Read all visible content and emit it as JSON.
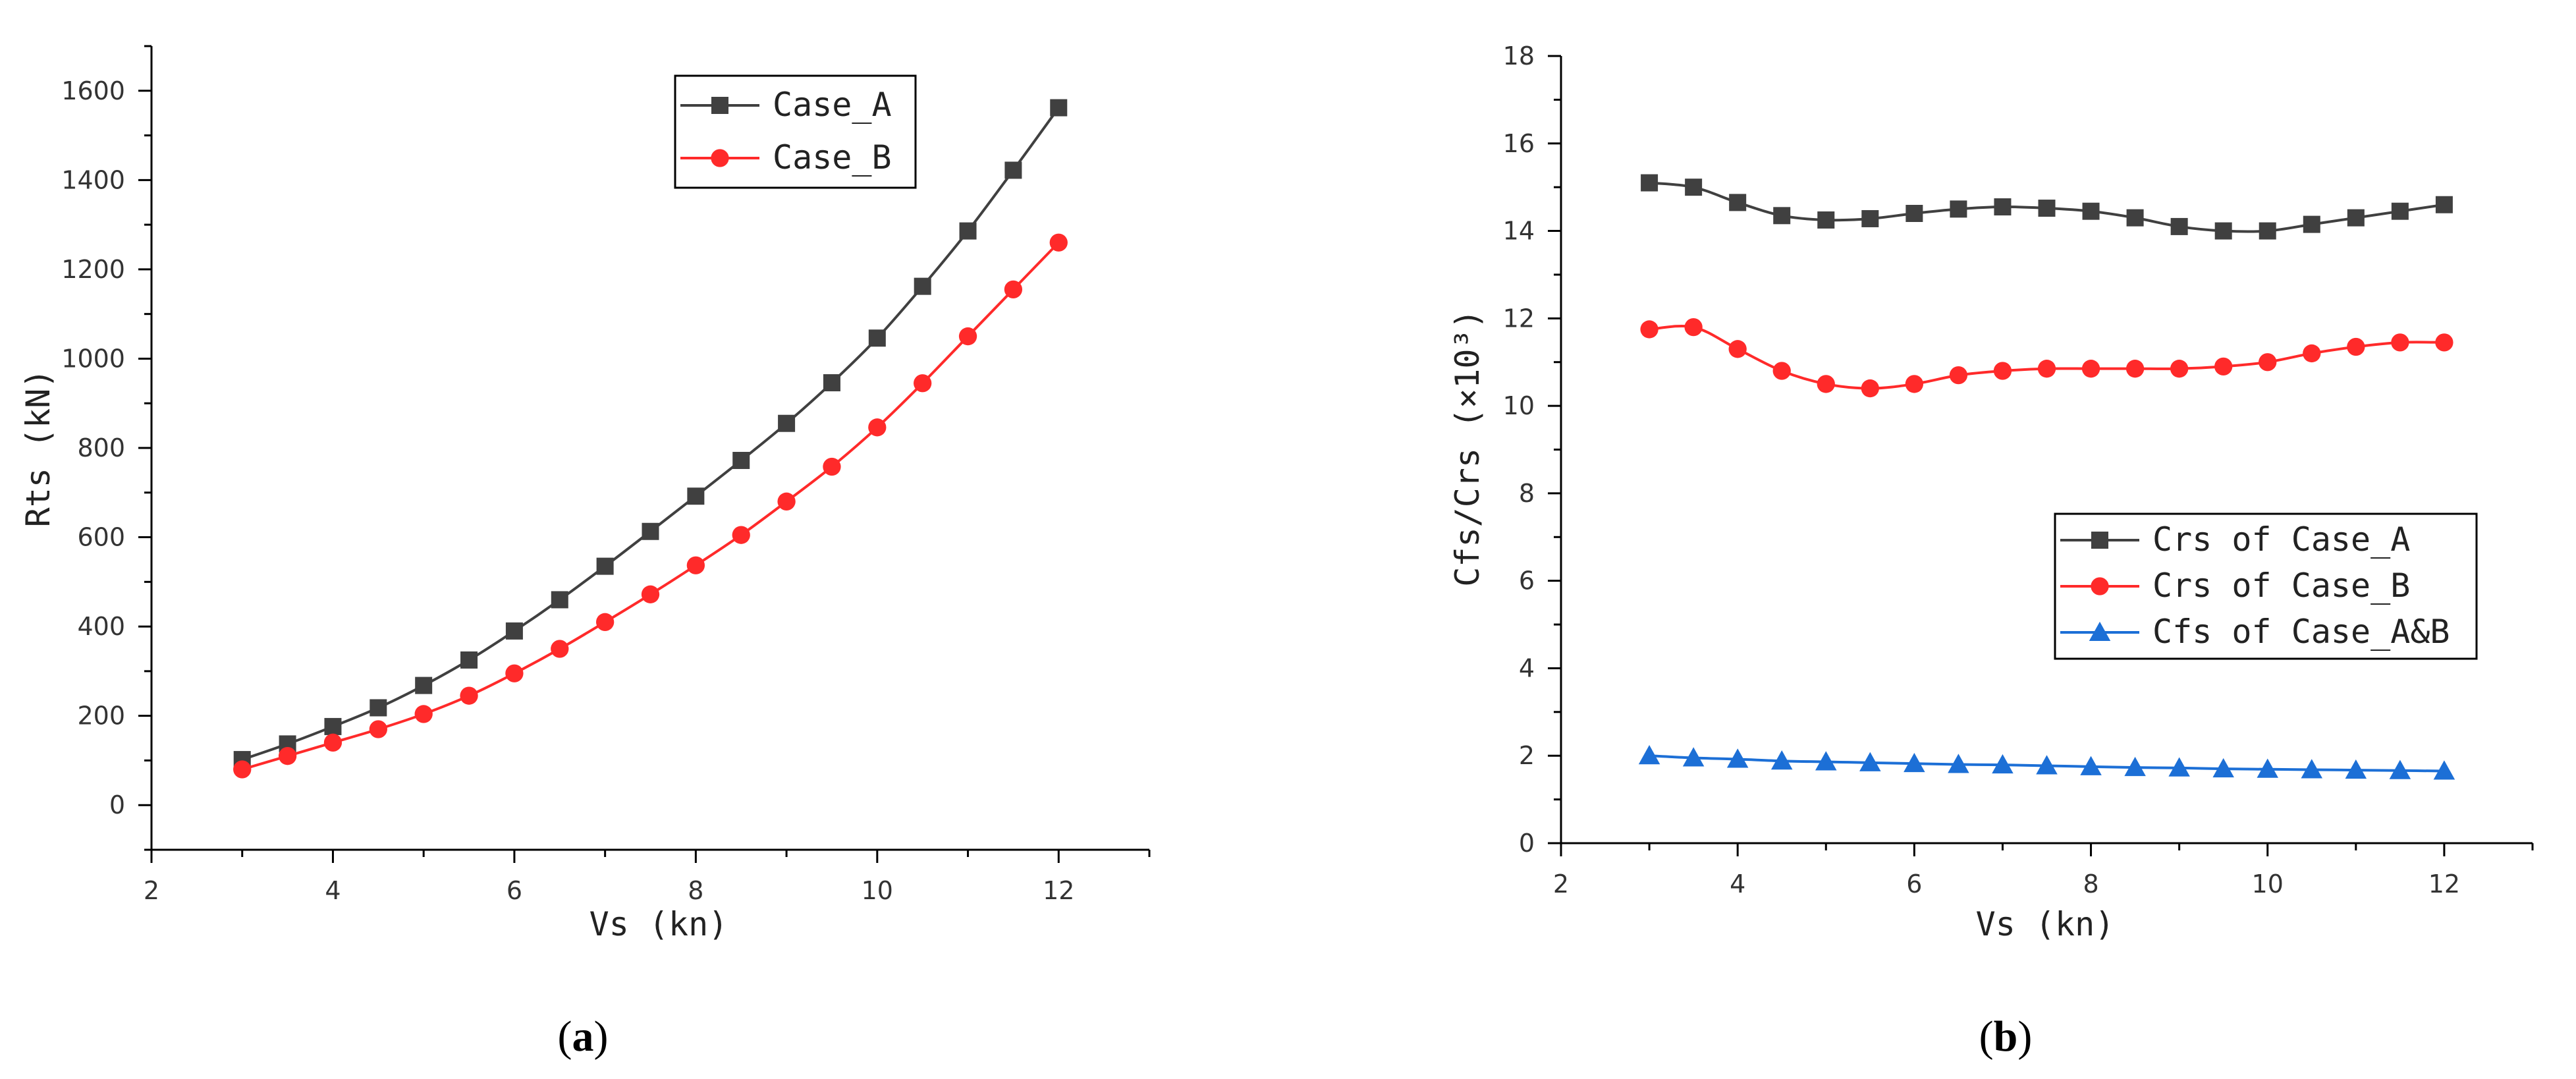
{
  "chart_data": [
    {
      "type": "line",
      "panel_label": "a",
      "xlabel": "Vs (kn)",
      "ylabel": "Rts (kN)",
      "xlim": [
        2,
        13
      ],
      "ylim": [
        -100,
        1700
      ],
      "xticks": [
        2,
        4,
        6,
        8,
        10,
        12
      ],
      "yticks": [
        0,
        200,
        400,
        600,
        800,
        1000,
        1200,
        1400,
        1600
      ],
      "x": [
        3,
        3.5,
        4,
        4.5,
        5,
        5.5,
        6,
        6.5,
        7,
        7.5,
        8,
        8.5,
        9,
        9.5,
        10,
        10.5,
        11,
        11.5,
        12
      ],
      "legend_position": "top-right",
      "series": [
        {
          "name": "Case_A",
          "color": "#404040",
          "marker": "square",
          "values": [
            102,
            137,
            176,
            218,
            268,
            325,
            390,
            460,
            535,
            613,
            692,
            772,
            855,
            946,
            1046,
            1162,
            1286,
            1422,
            1562
          ]
        },
        {
          "name": "Case_B",
          "color": "#ff2a2a",
          "marker": "circle",
          "values": [
            80,
            110,
            140,
            170,
            204,
            245,
            295,
            350,
            410,
            472,
            537,
            605,
            680,
            758,
            846,
            945,
            1050,
            1155,
            1260
          ]
        }
      ]
    },
    {
      "type": "line",
      "panel_label": "b",
      "xlabel": "Vs (kn)",
      "ylabel": "Cfs/Crs (×10³)",
      "xlim": [
        2,
        13
      ],
      "ylim": [
        0,
        18
      ],
      "xticks": [
        2,
        4,
        6,
        8,
        10,
        12
      ],
      "yticks": [
        0,
        2,
        4,
        6,
        8,
        10,
        12,
        14,
        16,
        18
      ],
      "x": [
        3,
        3.5,
        4,
        4.5,
        5,
        5.5,
        6,
        6.5,
        7,
        7.5,
        8,
        8.5,
        9,
        9.5,
        10,
        10.5,
        11,
        11.5,
        12
      ],
      "legend_position": "center-right",
      "series": [
        {
          "name": "Crs of Case_A",
          "color": "#404040",
          "marker": "square",
          "values": [
            15.1,
            15.0,
            14.65,
            14.35,
            14.25,
            14.28,
            14.4,
            14.5,
            14.55,
            14.52,
            14.45,
            14.3,
            14.1,
            14.0,
            14.0,
            14.15,
            14.3,
            14.45,
            14.6
          ]
        },
        {
          "name": "Crs of Case_B",
          "color": "#ff2a2a",
          "marker": "circle",
          "values": [
            11.75,
            11.8,
            11.3,
            10.8,
            10.5,
            10.4,
            10.5,
            10.7,
            10.8,
            10.85,
            10.85,
            10.85,
            10.85,
            10.9,
            11.0,
            11.2,
            11.35,
            11.45,
            11.45
          ]
        },
        {
          "name": "Cfs of Case_A&B",
          "color": "#1c6fd6",
          "marker": "triangle",
          "values": [
            2.0,
            1.95,
            1.92,
            1.88,
            1.86,
            1.84,
            1.82,
            1.8,
            1.79,
            1.77,
            1.75,
            1.73,
            1.72,
            1.7,
            1.69,
            1.68,
            1.67,
            1.66,
            1.65
          ]
        }
      ]
    }
  ]
}
